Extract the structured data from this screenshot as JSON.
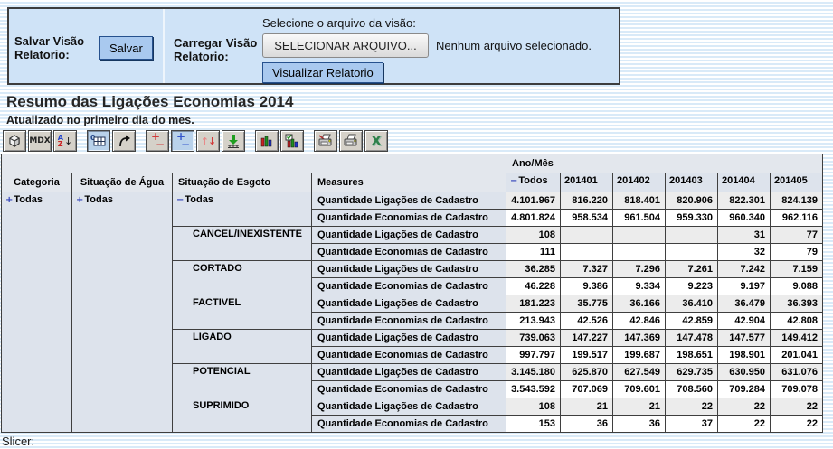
{
  "top_panel": {
    "save_label": "Salvar Visão Relatorio:",
    "save_button": "Salvar",
    "load_label": "Carregar Visão Relatorio:",
    "file_prompt": "Selecione o arquivo da visão:",
    "file_button": "SELECIONAR ARQUIVO...",
    "file_status": "Nenhum arquivo selecionado.",
    "view_button": "Visualizar Relatorio"
  },
  "title": "Resumo das Ligações Economias 2014",
  "subtitle": "Atualizado no primeiro dia do mes.",
  "toolbar": {
    "mdx_label": "MDX"
  },
  "table": {
    "axis_column_label": "Ano/Mês",
    "row_headers": [
      "Categoria",
      "Situação de Água",
      "Situação de Esgoto",
      "Measures"
    ],
    "column_total_member": "Todos",
    "column_months": [
      "201401",
      "201402",
      "201403",
      "201404",
      "201405"
    ],
    "categoria_member": "Todas",
    "agua_member": "Todas",
    "measure_labels": [
      "Quantidade Ligações de Cadastro",
      "Quantidade Economias de Cadastro"
    ],
    "esgoto_rows": [
      {
        "member": "Todas",
        "level": 0,
        "icon": "minus",
        "values": [
          [
            "4.101.967",
            "816.220",
            "818.401",
            "820.906",
            "822.301",
            "824.139"
          ],
          [
            "4.801.824",
            "958.534",
            "961.504",
            "959.330",
            "960.340",
            "962.116"
          ]
        ]
      },
      {
        "member": "CANCEL/INEXISTENTE",
        "level": 1,
        "icon": null,
        "values": [
          [
            "108",
            "",
            "",
            "",
            "31",
            "77"
          ],
          [
            "111",
            "",
            "",
            "",
            "32",
            "79"
          ]
        ]
      },
      {
        "member": "CORTADO",
        "level": 1,
        "icon": null,
        "values": [
          [
            "36.285",
            "7.327",
            "7.296",
            "7.261",
            "7.242",
            "7.159"
          ],
          [
            "46.228",
            "9.386",
            "9.334",
            "9.223",
            "9.197",
            "9.088"
          ]
        ]
      },
      {
        "member": "FACTIVEL",
        "level": 1,
        "icon": null,
        "values": [
          [
            "181.223",
            "35.775",
            "36.166",
            "36.410",
            "36.479",
            "36.393"
          ],
          [
            "213.943",
            "42.526",
            "42.846",
            "42.859",
            "42.904",
            "42.808"
          ]
        ]
      },
      {
        "member": "LIGADO",
        "level": 1,
        "icon": null,
        "values": [
          [
            "739.063",
            "147.227",
            "147.369",
            "147.478",
            "147.577",
            "149.412"
          ],
          [
            "997.797",
            "199.517",
            "199.687",
            "198.651",
            "198.901",
            "201.041"
          ]
        ]
      },
      {
        "member": "POTENCIAL",
        "level": 1,
        "icon": null,
        "values": [
          [
            "3.145.180",
            "625.870",
            "627.549",
            "629.735",
            "630.950",
            "631.076"
          ],
          [
            "3.543.592",
            "707.069",
            "709.601",
            "708.560",
            "709.284",
            "709.078"
          ]
        ]
      },
      {
        "member": "SUPRIMIDO",
        "level": 1,
        "icon": null,
        "values": [
          [
            "108",
            "21",
            "21",
            "22",
            "22",
            "22"
          ],
          [
            "153",
            "36",
            "36",
            "37",
            "22",
            "22"
          ]
        ]
      }
    ]
  },
  "slicer_label": "Slicer:",
  "colors": {
    "panel_bg": "#cfe3f7",
    "button_blue": "#a9c9ef",
    "heading_bg": "#e3e7ed",
    "rowheading_bg": "#dde3ec",
    "row_shade": "#ececec",
    "stripe_blue": "#d9eaf8",
    "member_icon_blue": "#3344bb"
  }
}
